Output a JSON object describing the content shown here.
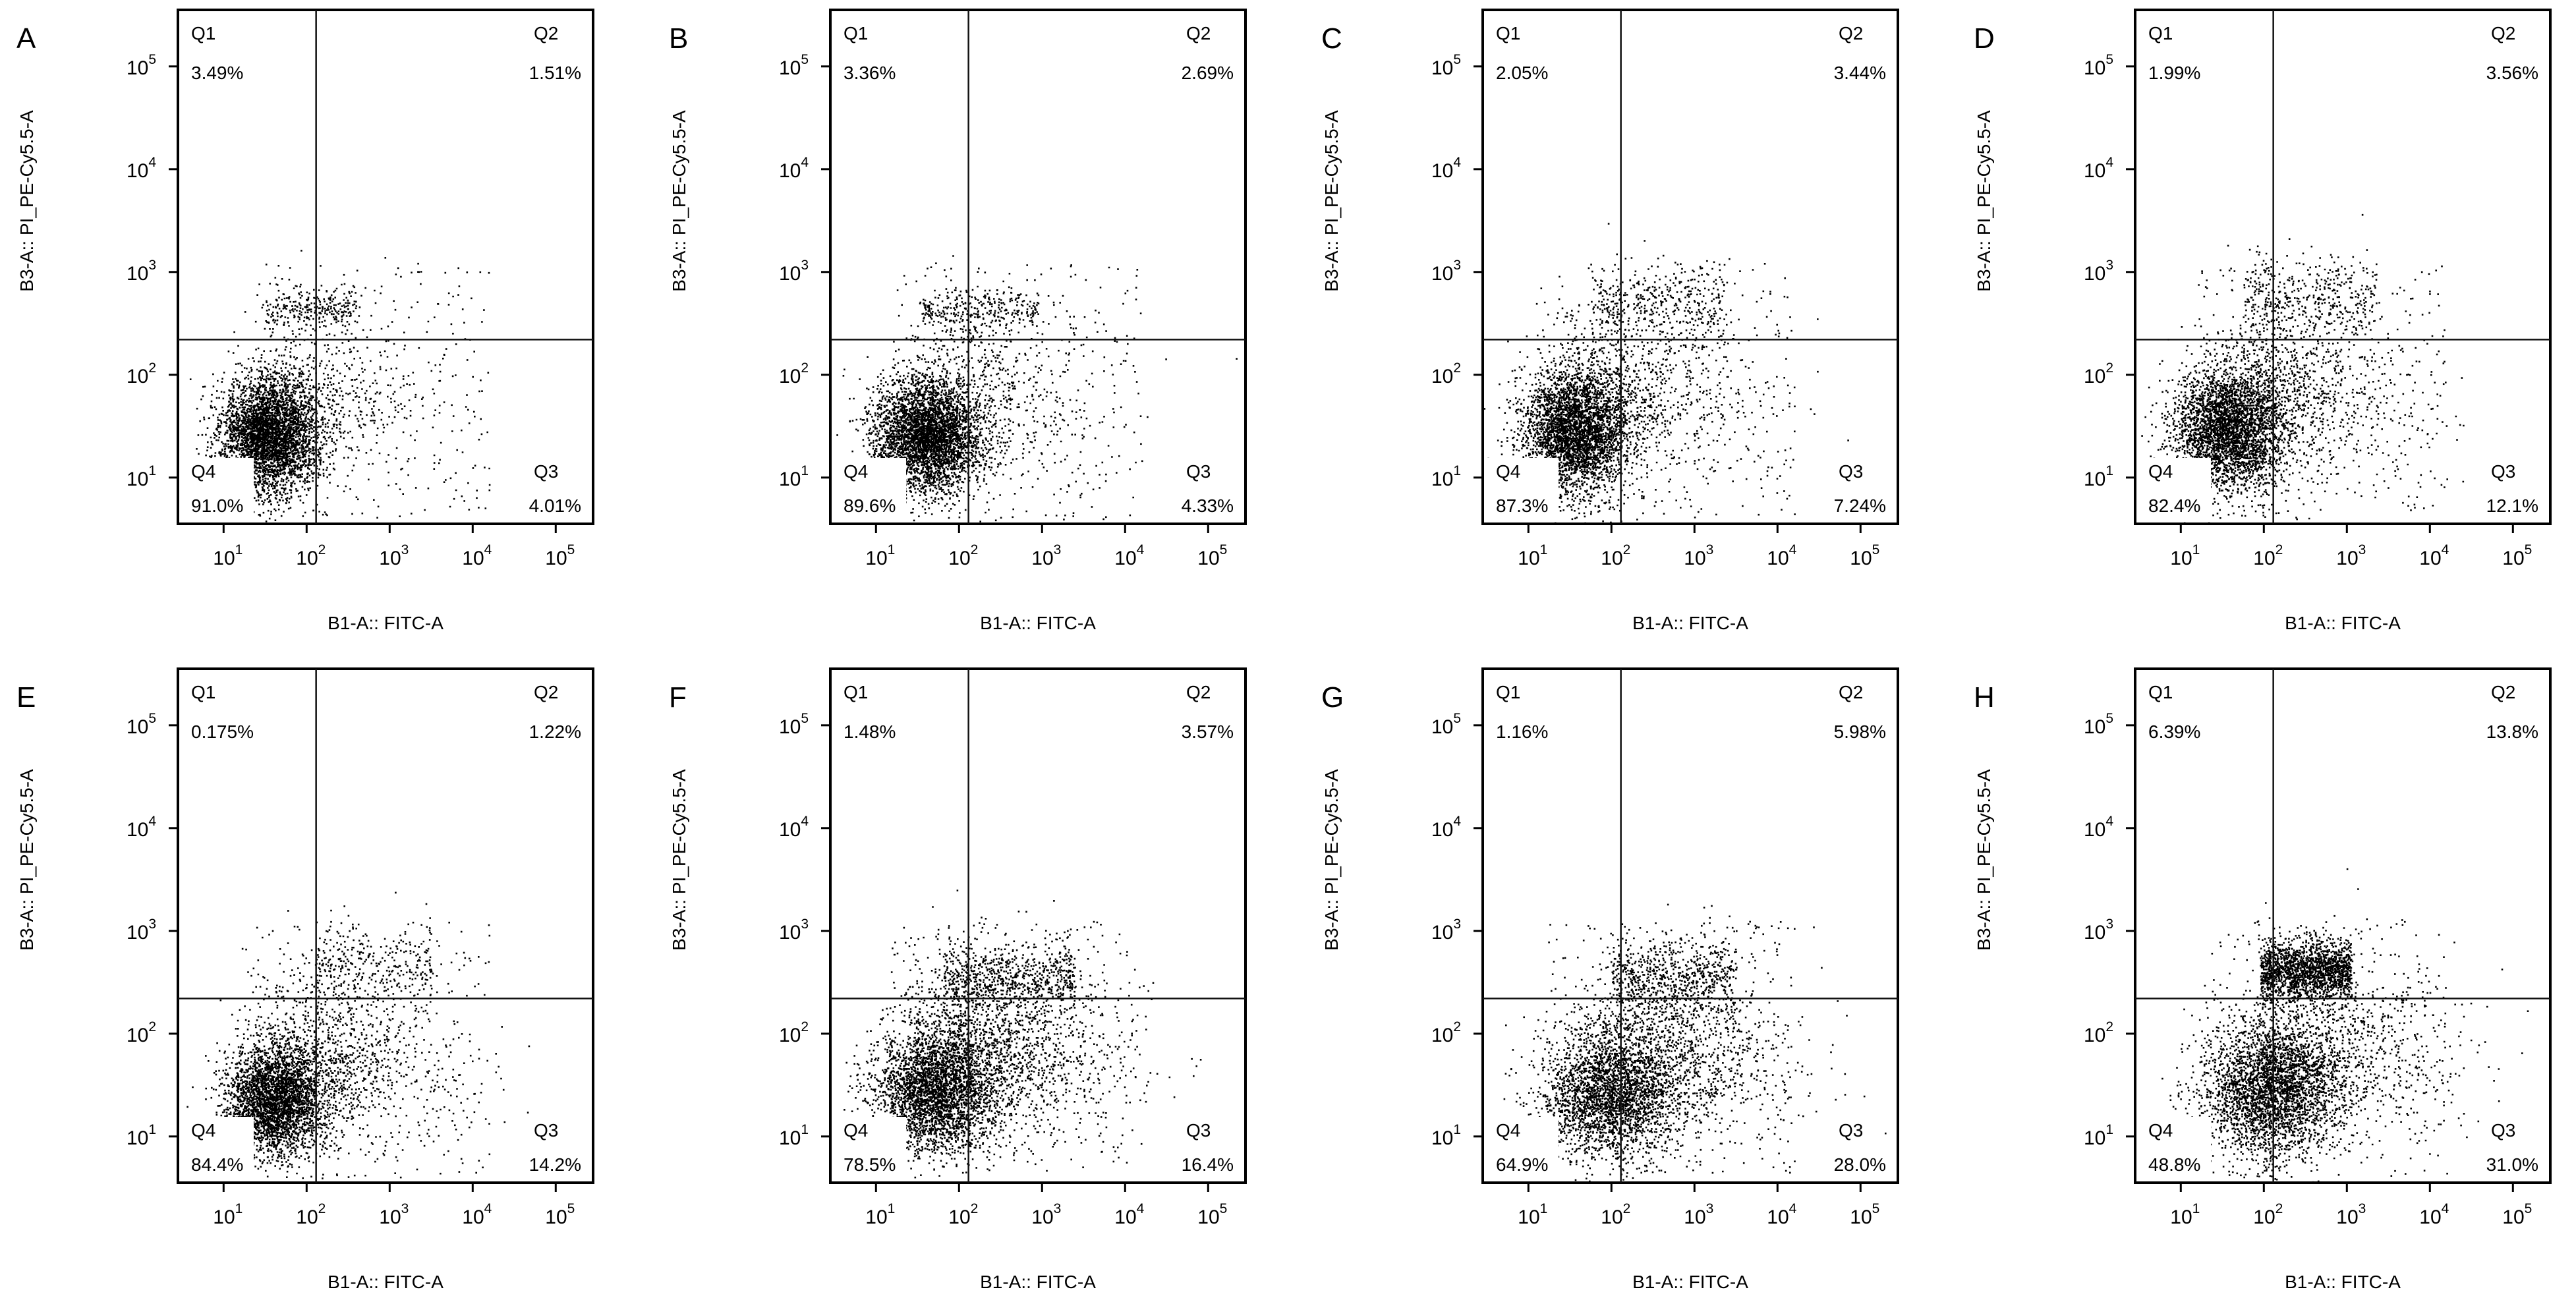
{
  "figure": {
    "panels": [
      "A",
      "B",
      "C",
      "D",
      "E",
      "F",
      "G",
      "H"
    ]
  },
  "chart_data": [
    {
      "type": "scatter",
      "panel_label": "A",
      "xlabel": "B1-A:: FITC-A",
      "ylabel": "B3-A:: PI_PE-Cy5.5-A",
      "xscale": "log",
      "yscale": "log",
      "x_ticks": [
        "10^1",
        "10^2",
        "10^3",
        "10^4",
        "10^5"
      ],
      "y_ticks": [
        "10^1",
        "10^2",
        "10^3",
        "10^4",
        "10^5"
      ],
      "x_gate": 130,
      "y_gate": 220,
      "quadrants": [
        {
          "name": "Q1",
          "percent": "3.49%"
        },
        {
          "name": "Q2",
          "percent": "1.51%"
        },
        {
          "name": "Q3",
          "percent": "4.01%"
        },
        {
          "name": "Q4",
          "percent": "91.0%"
        }
      ]
    },
    {
      "type": "scatter",
      "panel_label": "B",
      "xlabel": "B1-A:: FITC-A",
      "ylabel": "B3-A:: PI_PE-Cy5.5-A",
      "xscale": "log",
      "yscale": "log",
      "x_ticks": [
        "10^1",
        "10^2",
        "10^3",
        "10^4",
        "10^5"
      ],
      "y_ticks": [
        "10^1",
        "10^2",
        "10^3",
        "10^4",
        "10^5"
      ],
      "x_gate": 130,
      "y_gate": 220,
      "quadrants": [
        {
          "name": "Q1",
          "percent": "3.36%"
        },
        {
          "name": "Q2",
          "percent": "2.69%"
        },
        {
          "name": "Q3",
          "percent": "4.33%"
        },
        {
          "name": "Q4",
          "percent": "89.6%"
        }
      ]
    },
    {
      "type": "scatter",
      "panel_label": "C",
      "xlabel": "B1-A:: FITC-A",
      "ylabel": "B3-A:: PI_PE-Cy5.5-A",
      "xscale": "log",
      "yscale": "log",
      "x_ticks": [
        "10^1",
        "10^2",
        "10^3",
        "10^4",
        "10^5"
      ],
      "y_ticks": [
        "10^1",
        "10^2",
        "10^3",
        "10^4",
        "10^5"
      ],
      "x_gate": 130,
      "y_gate": 220,
      "quadrants": [
        {
          "name": "Q1",
          "percent": "2.05%"
        },
        {
          "name": "Q2",
          "percent": "3.44%"
        },
        {
          "name": "Q3",
          "percent": "7.24%"
        },
        {
          "name": "Q4",
          "percent": "87.3%"
        }
      ]
    },
    {
      "type": "scatter",
      "panel_label": "D",
      "xlabel": "B1-A:: FITC-A",
      "ylabel": "B3-A:: PI_PE-Cy5.5-A",
      "xscale": "log",
      "yscale": "log",
      "x_ticks": [
        "10^1",
        "10^2",
        "10^3",
        "10^4",
        "10^5"
      ],
      "y_ticks": [
        "10^1",
        "10^2",
        "10^3",
        "10^4",
        "10^5"
      ],
      "x_gate": 130,
      "y_gate": 220,
      "quadrants": [
        {
          "name": "Q1",
          "percent": "1.99%"
        },
        {
          "name": "Q2",
          "percent": "3.56%"
        },
        {
          "name": "Q3",
          "percent": "12.1%"
        },
        {
          "name": "Q4",
          "percent": "82.4%"
        }
      ]
    },
    {
      "type": "scatter",
      "panel_label": "E",
      "xlabel": "B1-A:: FITC-A",
      "ylabel": "B3-A:: PI_PE-Cy5.5-A",
      "xscale": "log",
      "yscale": "log",
      "x_ticks": [
        "10^1",
        "10^2",
        "10^3",
        "10^4",
        "10^5"
      ],
      "y_ticks": [
        "10^1",
        "10^2",
        "10^3",
        "10^4",
        "10^5"
      ],
      "x_gate": 130,
      "y_gate": 220,
      "quadrants": [
        {
          "name": "Q1",
          "percent": "0.175%"
        },
        {
          "name": "Q2",
          "percent": "1.22%"
        },
        {
          "name": "Q3",
          "percent": "14.2%"
        },
        {
          "name": "Q4",
          "percent": "84.4%"
        }
      ]
    },
    {
      "type": "scatter",
      "panel_label": "F",
      "xlabel": "B1-A:: FITC-A",
      "ylabel": "B3-A:: PI_PE-Cy5.5-A",
      "xscale": "log",
      "yscale": "log",
      "x_ticks": [
        "10^1",
        "10^2",
        "10^3",
        "10^4",
        "10^5"
      ],
      "y_ticks": [
        "10^1",
        "10^2",
        "10^3",
        "10^4",
        "10^5"
      ],
      "x_gate": 130,
      "y_gate": 220,
      "quadrants": [
        {
          "name": "Q1",
          "percent": "1.48%"
        },
        {
          "name": "Q2",
          "percent": "3.57%"
        },
        {
          "name": "Q3",
          "percent": "16.4%"
        },
        {
          "name": "Q4",
          "percent": "78.5%"
        }
      ]
    },
    {
      "type": "scatter",
      "panel_label": "G",
      "xlabel": "B1-A:: FITC-A",
      "ylabel": "B3-A:: PI_PE-Cy5.5-A",
      "xscale": "log",
      "yscale": "log",
      "x_ticks": [
        "10^1",
        "10^2",
        "10^3",
        "10^4",
        "10^5"
      ],
      "y_ticks": [
        "10^1",
        "10^2",
        "10^3",
        "10^4",
        "10^5"
      ],
      "x_gate": 130,
      "y_gate": 220,
      "quadrants": [
        {
          "name": "Q1",
          "percent": "1.16%"
        },
        {
          "name": "Q2",
          "percent": "5.98%"
        },
        {
          "name": "Q3",
          "percent": "28.0%"
        },
        {
          "name": "Q4",
          "percent": "64.9%"
        }
      ]
    },
    {
      "type": "scatter",
      "panel_label": "H",
      "xlabel": "B1-A:: FITC-A",
      "ylabel": "B3-A:: PI_PE-Cy5.5-A",
      "xscale": "log",
      "yscale": "log",
      "x_ticks": [
        "10^1",
        "10^2",
        "10^3",
        "10^4",
        "10^5"
      ],
      "y_ticks": [
        "10^1",
        "10^2",
        "10^3",
        "10^4",
        "10^5"
      ],
      "x_gate": 130,
      "y_gate": 220,
      "quadrants": [
        {
          "name": "Q1",
          "percent": "6.39%"
        },
        {
          "name": "Q2",
          "percent": "13.8%"
        },
        {
          "name": "Q3",
          "percent": "31.0%"
        },
        {
          "name": "Q4",
          "percent": "48.8%"
        }
      ]
    }
  ]
}
